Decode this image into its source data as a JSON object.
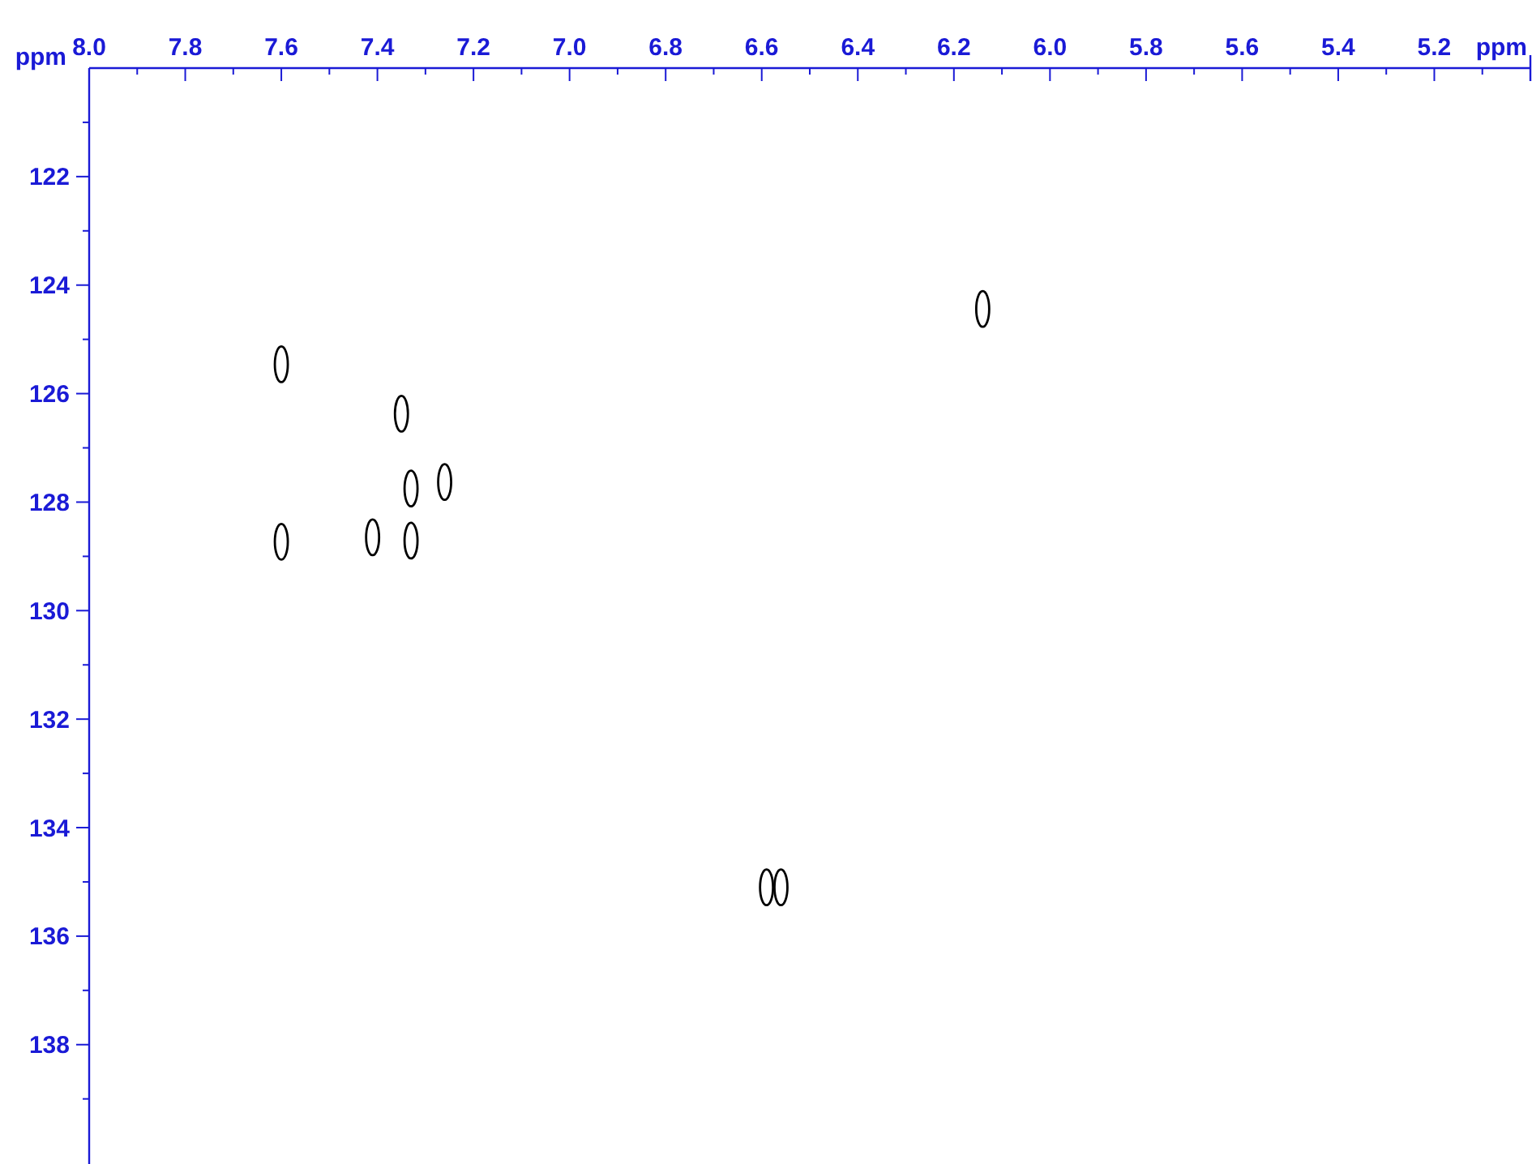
{
  "chart_data": {
    "type": "scatter",
    "xlabel": "ppm",
    "ylabel": "ppm",
    "xlim": [
      8.0,
      5.0
    ],
    "ylim": [
      140.2,
      120.0
    ],
    "xticks": [
      {
        "value": 8.0,
        "label": "8.0"
      },
      {
        "value": 7.9,
        "label": null
      },
      7.8,
      {
        "value": 7.7,
        "label": null
      },
      7.6,
      {
        "value": 7.5,
        "label": null
      },
      7.4,
      {
        "value": 7.3,
        "label": null
      },
      7.2,
      {
        "value": 7.1,
        "label": null
      },
      {
        "value": 7.0,
        "label": "7.0"
      },
      {
        "value": 6.9,
        "label": null
      },
      6.8,
      {
        "value": 6.7,
        "label": null
      },
      6.6,
      {
        "value": 6.5,
        "label": null
      },
      6.4,
      {
        "value": 6.3,
        "label": null
      },
      6.2,
      {
        "value": 6.1,
        "label": null
      },
      {
        "value": 6.0,
        "label": "6.0"
      },
      {
        "value": 5.9,
        "label": null
      },
      5.8,
      {
        "value": 5.7,
        "label": null
      },
      5.6,
      {
        "value": 5.5,
        "label": null
      },
      5.4,
      {
        "value": 5.3,
        "label": null
      },
      5.2,
      {
        "value": 5.1,
        "label": null
      }
    ],
    "yticks": [
      {
        "value": 121,
        "label": null
      },
      122,
      {
        "value": 123,
        "label": null
      },
      124,
      {
        "value": 125,
        "label": null
      },
      126,
      {
        "value": 127,
        "label": null
      },
      128,
      {
        "value": 129,
        "label": null
      },
      130,
      {
        "value": 131,
        "label": null
      },
      132,
      {
        "value": 133,
        "label": null
      },
      134,
      {
        "value": 135,
        "label": null
      },
      136,
      {
        "value": 137,
        "label": null
      },
      138,
      {
        "value": 139,
        "label": null
      }
    ],
    "grid": false,
    "series": [
      {
        "color": "#000000",
        "x": [
          7.6,
          7.35,
          7.26,
          7.33,
          7.33,
          7.41,
          7.6,
          6.14,
          6.59,
          6.56
        ],
        "values": [
          125.46,
          126.37,
          127.63,
          127.75,
          128.71,
          128.65,
          128.73,
          124.44,
          135.1,
          135.1
        ]
      }
    ]
  }
}
